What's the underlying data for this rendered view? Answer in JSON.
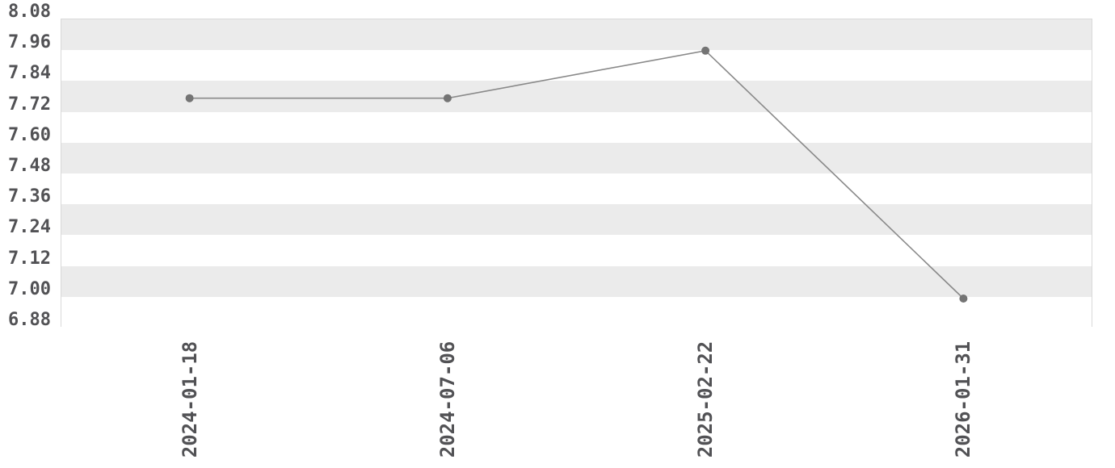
{
  "chart_data": {
    "type": "line",
    "title": "",
    "xlabel": "",
    "ylabel": "",
    "categories": [
      "2024-01-18",
      "2024-07-06",
      "2025-02-22",
      "2026-01-31"
    ],
    "values": [
      7.77,
      7.77,
      7.955,
      6.99
    ],
    "ylim": [
      6.88,
      8.08
    ],
    "ytick_step": 0.12,
    "yticks": [
      "8.08",
      "7.96",
      "7.84",
      "7.72",
      "7.60",
      "7.48",
      "7.36",
      "7.24",
      "7.12",
      "7.00",
      "6.88"
    ],
    "grid": "horizontal-alternating-bands",
    "legend_position": "none",
    "colors": {
      "band": "#ebebeb",
      "band_alt": "#ffffff",
      "line": "#898989",
      "point": "#747474",
      "axis_border": "#d9d9d9",
      "tick_text": "#525255",
      "background": "#ffffff"
    }
  }
}
